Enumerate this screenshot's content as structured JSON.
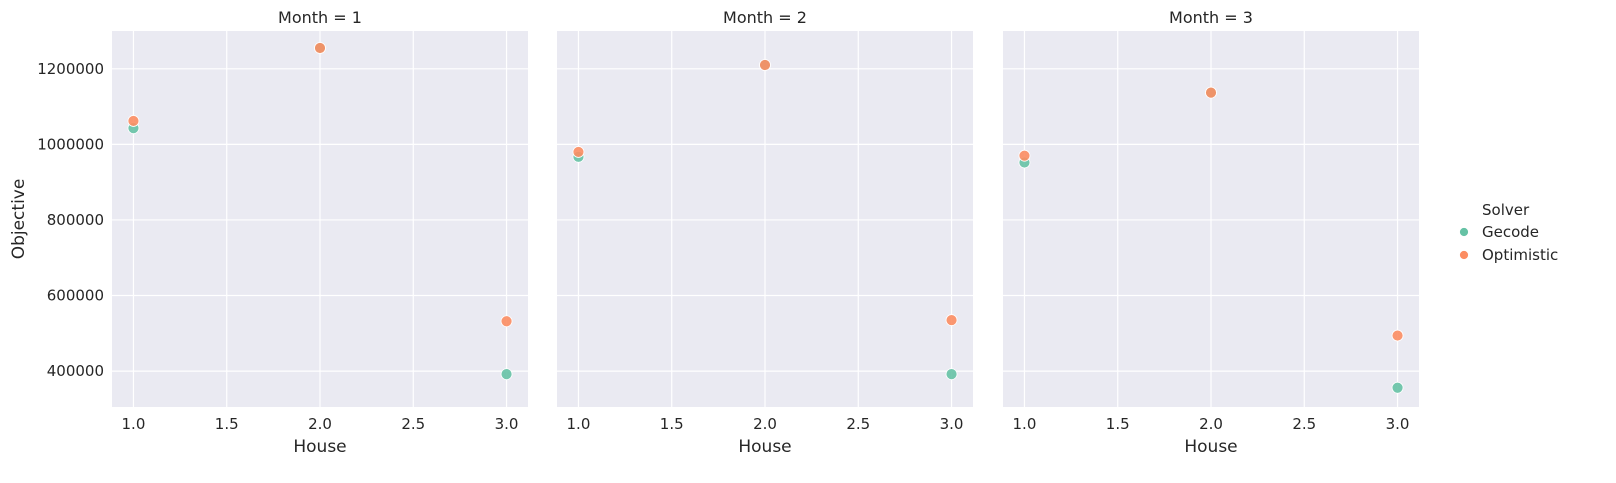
{
  "chart_data": {
    "type": "scatter",
    "facet_variable": "Month",
    "panels": [
      {
        "title": "Month = 1",
        "series": [
          {
            "name": "Gecode",
            "x": [
              1.0,
              2.0,
              3.0
            ],
            "y": [
              1043000,
              1255000,
              392000
            ]
          },
          {
            "name": "Optimistic",
            "x": [
              1.0,
              2.0,
              3.0
            ],
            "y": [
              1062000,
              1255000,
              532000
            ]
          }
        ]
      },
      {
        "title": "Month = 2",
        "series": [
          {
            "name": "Gecode",
            "x": [
              1.0,
              2.0,
              3.0
            ],
            "y": [
              967000,
              1210000,
              392000
            ]
          },
          {
            "name": "Optimistic",
            "x": [
              1.0,
              2.0,
              3.0
            ],
            "y": [
              980000,
              1210000,
              535000
            ]
          }
        ]
      },
      {
        "title": "Month = 3",
        "series": [
          {
            "name": "Gecode",
            "x": [
              1.0,
              2.0,
              3.0
            ],
            "y": [
              952000,
              1137000,
              356000
            ]
          },
          {
            "name": "Optimistic",
            "x": [
              1.0,
              2.0,
              3.0
            ],
            "y": [
              970000,
              1137000,
              494000
            ]
          }
        ]
      }
    ],
    "xlabel": "House",
    "ylabel": "Objective",
    "xlim": [
      0.885,
      3.115
    ],
    "ylim": [
      305000,
      1300000
    ],
    "xticks": [
      1.0,
      1.5,
      2.0,
      2.5,
      3.0
    ],
    "xtick_labels": [
      "1.0",
      "1.5",
      "2.0",
      "2.5",
      "3.0"
    ],
    "yticks": [
      400000,
      600000,
      800000,
      1000000,
      1200000
    ],
    "ytick_labels": [
      "400000",
      "600000",
      "800000",
      "1000000",
      "1200000"
    ],
    "grid": true,
    "legend": {
      "title": "Solver",
      "placement": "right",
      "entries": [
        {
          "name": "Gecode",
          "color": "#66c2a5"
        },
        {
          "name": "Optimistic",
          "color": "#fc8d62"
        }
      ]
    },
    "colors": {
      "Gecode": "#66c2a5",
      "Optimistic": "#fc8d62",
      "background": "#eaeaf2",
      "grid": "#ffffff"
    }
  }
}
